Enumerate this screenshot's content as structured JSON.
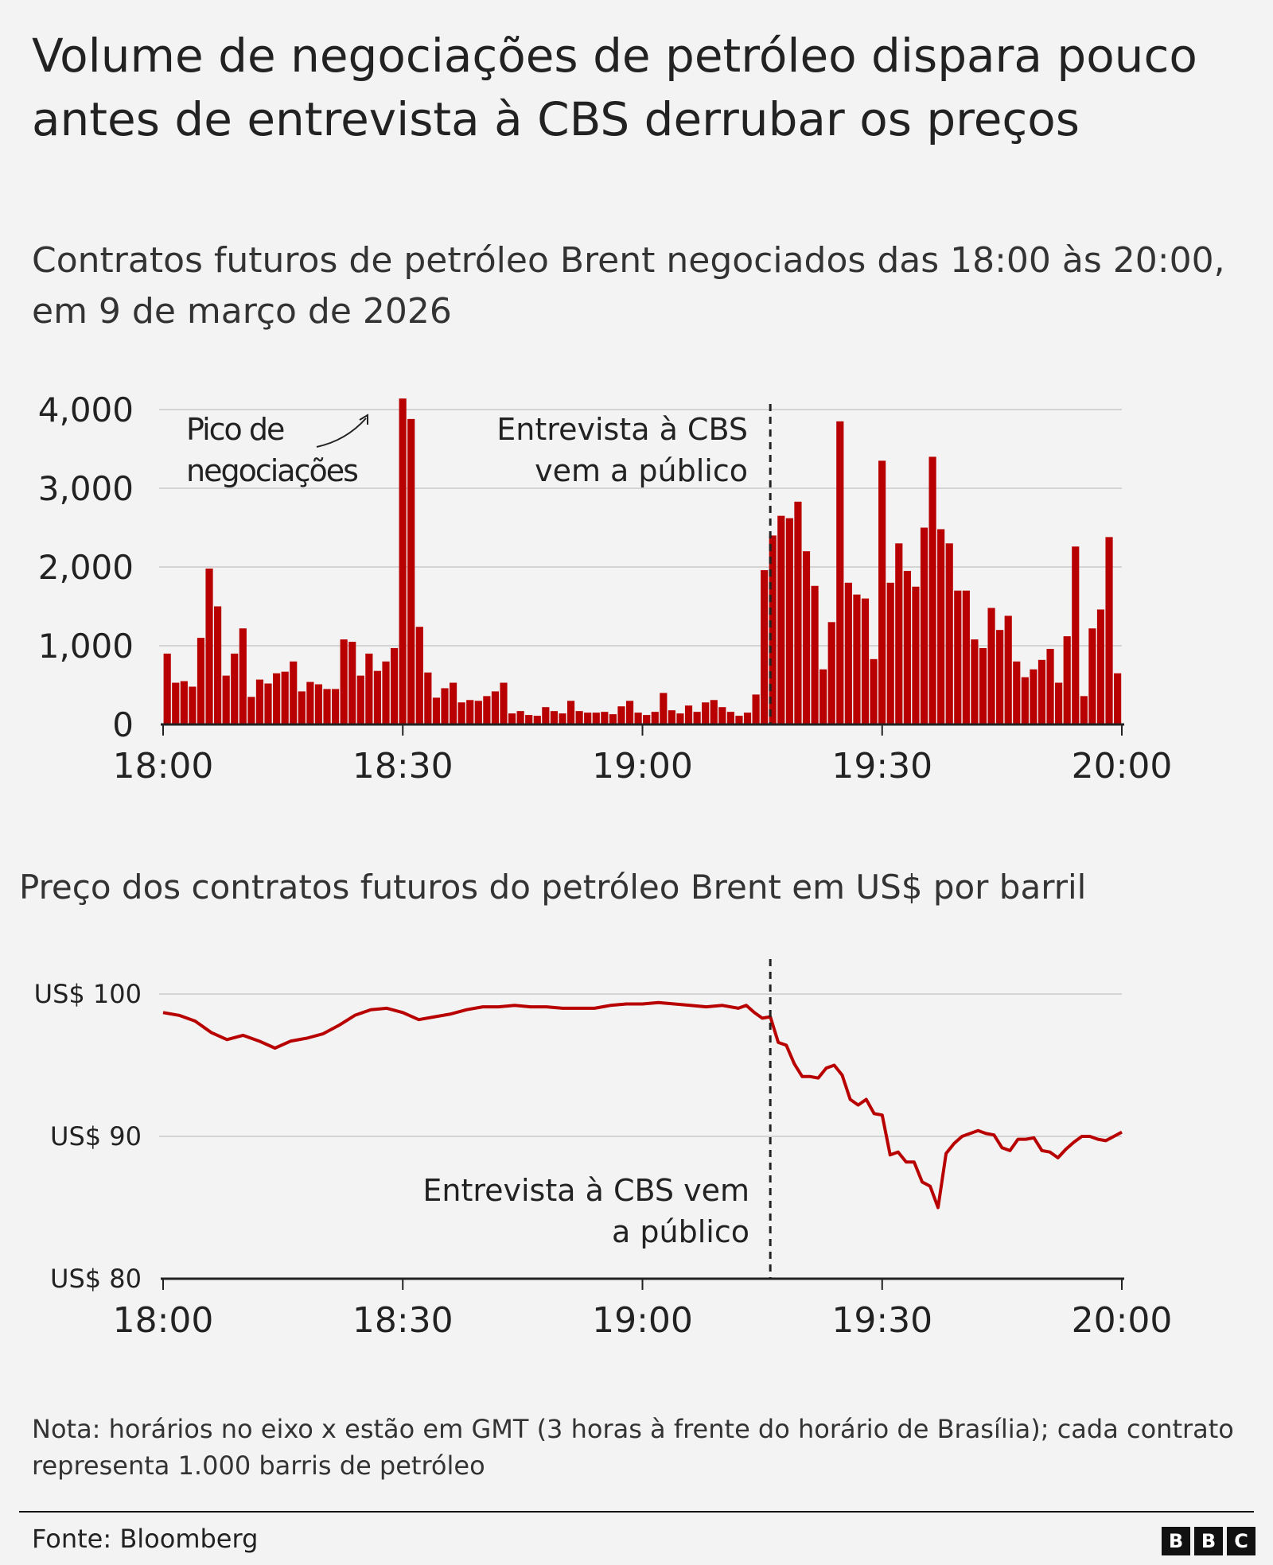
{
  "title": "Volume de negociações de petróleo dispara pouco antes de entrevista à CBS derrubar os preços",
  "subtitle": "Contratos futuros de petróleo Brent negociados das 18:00 às 20:00, em 9 de março de 2026",
  "note": "Nota: horários no eixo x estão em GMT (3 horas à frente do horário de Brasília); cada contrato representa 1.000 barris de petróleo",
  "source": "Fonte: Bloomberg",
  "logo": [
    "B",
    "B",
    "C"
  ],
  "colors": {
    "bar": "#b80000",
    "line": "#b80000",
    "grid": "#d4d4d4",
    "axis": "#222222"
  },
  "chart_data": [
    {
      "type": "bar",
      "title": "",
      "xlabel": "",
      "ylabel": "",
      "x_unit": "minutes after 18:00",
      "xlim": [
        "18:00",
        "20:00"
      ],
      "xticks": [
        "18:00",
        "18:30",
        "19:00",
        "19:30",
        "20:00"
      ],
      "ylim": [
        0,
        4000
      ],
      "yticks": [
        "0",
        "1,000",
        "2,000",
        "3,000",
        "4,000"
      ],
      "grid": true,
      "values": [
        900,
        530,
        550,
        480,
        1100,
        1980,
        1500,
        620,
        900,
        1220,
        350,
        570,
        520,
        650,
        670,
        800,
        420,
        540,
        510,
        450,
        450,
        1080,
        1050,
        620,
        900,
        680,
        800,
        970,
        4140,
        3880,
        1240,
        660,
        340,
        460,
        530,
        280,
        310,
        300,
        360,
        420,
        530,
        140,
        170,
        120,
        110,
        220,
        170,
        140,
        300,
        170,
        150,
        150,
        160,
        130,
        230,
        300,
        150,
        120,
        160,
        400,
        180,
        140,
        240,
        160,
        280,
        310,
        220,
        160,
        110,
        150,
        380,
        1960,
        2400,
        2650,
        2620,
        2830,
        2200,
        1760,
        700,
        1300,
        3850,
        1800,
        1650,
        1600,
        830,
        3350,
        1800,
        2300,
        1950,
        1750,
        2500,
        3400,
        2480,
        2300,
        1700,
        1700,
        1080,
        970,
        1480,
        1200,
        1380,
        800,
        600,
        700,
        820,
        960,
        530,
        1120,
        2260,
        360,
        1220,
        1460,
        2380,
        650
      ],
      "annotations": [
        {
          "text": "Pico de negociações",
          "line1": "Pico de",
          "line2": "negociações"
        },
        {
          "text": "Entrevista à CBS vem a público",
          "line1": "Entrevista à CBS",
          "line2": "vem a público",
          "time": "19:16"
        }
      ]
    },
    {
      "type": "line",
      "title": "Preço dos contratos futuros do petróleo Brent em US$ por barril",
      "xlabel": "",
      "ylabel": "",
      "xlim": [
        "18:00",
        "20:00"
      ],
      "xticks": [
        "18:00",
        "18:30",
        "19:00",
        "19:30",
        "20:00"
      ],
      "ylim": [
        80,
        100
      ],
      "yticks": [
        "US$ 80",
        "US$ 90",
        "US$ 100"
      ],
      "grid": true,
      "series": [
        {
          "x": [
            0,
            2,
            4,
            6,
            8,
            10,
            12,
            14,
            16,
            18,
            20,
            22,
            24,
            26,
            28,
            30,
            32,
            34,
            36,
            38,
            40,
            42,
            44,
            46,
            48,
            50,
            52,
            54,
            56,
            58,
            60,
            62,
            64,
            66,
            68,
            70,
            72,
            73,
            74,
            75,
            76,
            77,
            78,
            79,
            80,
            81,
            82,
            83,
            84,
            85,
            86,
            87,
            88,
            89,
            90,
            91,
            92,
            93,
            94,
            95,
            96,
            97,
            98,
            99,
            100,
            101,
            102,
            103,
            104,
            105,
            106,
            107,
            108,
            109,
            110,
            111,
            112,
            113,
            114,
            115,
            116,
            117,
            118,
            119,
            120
          ],
          "values": [
            98.7,
            98.5,
            98.1,
            97.3,
            96.8,
            97.1,
            96.7,
            96.2,
            96.7,
            96.9,
            97.2,
            97.8,
            98.5,
            98.9,
            99.0,
            98.7,
            98.2,
            98.4,
            98.6,
            98.9,
            99.1,
            99.1,
            99.2,
            99.1,
            99.1,
            99.0,
            99.0,
            99.0,
            99.2,
            99.3,
            99.3,
            99.4,
            99.3,
            99.2,
            99.1,
            99.2,
            99.0,
            99.2,
            98.7,
            98.3,
            98.4,
            96.6,
            96.4,
            95.1,
            94.2,
            94.2,
            94.1,
            94.8,
            95.0,
            94.3,
            92.6,
            92.2,
            92.6,
            91.6,
            91.5,
            88.7,
            88.9,
            88.2,
            88.2,
            86.8,
            86.5,
            85.0,
            88.8,
            89.5,
            90.0,
            90.2,
            90.4,
            90.2,
            90.1,
            89.2,
            89.0,
            89.8,
            89.8,
            89.9,
            89.0,
            88.9,
            88.5,
            89.1,
            89.6,
            90.0,
            90.0,
            89.8,
            89.7,
            90.0,
            90.3
          ]
        }
      ],
      "annotations": [
        {
          "text": "Entrevista à CBS vem a público",
          "line1": "Entrevista à CBS vem",
          "line2": "a público",
          "time": "19:16"
        }
      ]
    }
  ]
}
